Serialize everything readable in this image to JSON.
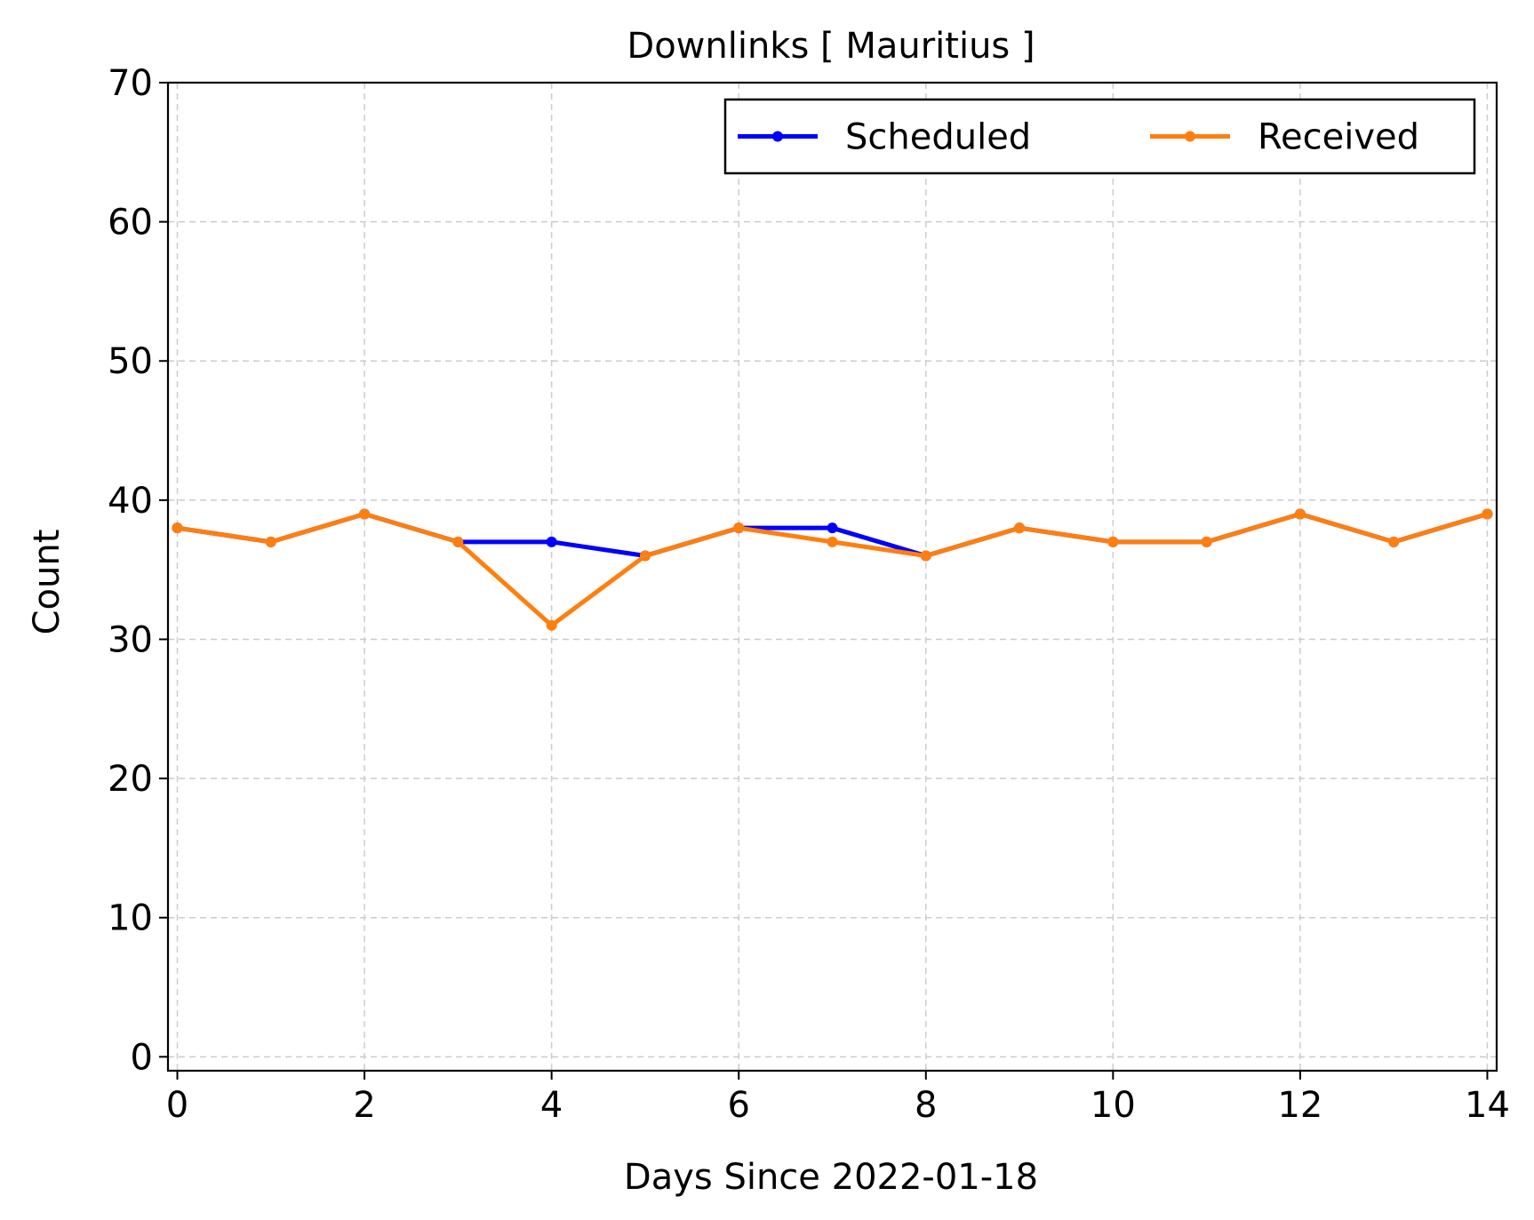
{
  "chart_data": {
    "type": "line",
    "title": "Downlinks [ Mauritius ]",
    "xlabel": "Days Since 2022-01-18",
    "ylabel": "Count",
    "xlim": [
      -0.1,
      14.1
    ],
    "ylim": [
      -1,
      70
    ],
    "xticks": [
      0,
      2,
      4,
      6,
      8,
      10,
      12,
      14
    ],
    "yticks": [
      0,
      10,
      20,
      30,
      40,
      50,
      60,
      70
    ],
    "grid": true,
    "legend_position": "top-right",
    "x": [
      0,
      1,
      2,
      3,
      4,
      5,
      6,
      7,
      8,
      9,
      10,
      11,
      12,
      13,
      14
    ],
    "series": [
      {
        "name": "Scheduled",
        "color": "#0000ff",
        "values": [
          38,
          37,
          39,
          37,
          37,
          36,
          38,
          38,
          36,
          38,
          37,
          37,
          39,
          37,
          39
        ]
      },
      {
        "name": "Received",
        "color": "#ff7f0e",
        "values": [
          38,
          37,
          39,
          37,
          31,
          36,
          38,
          37,
          36,
          38,
          37,
          37,
          39,
          37,
          39
        ]
      }
    ]
  }
}
